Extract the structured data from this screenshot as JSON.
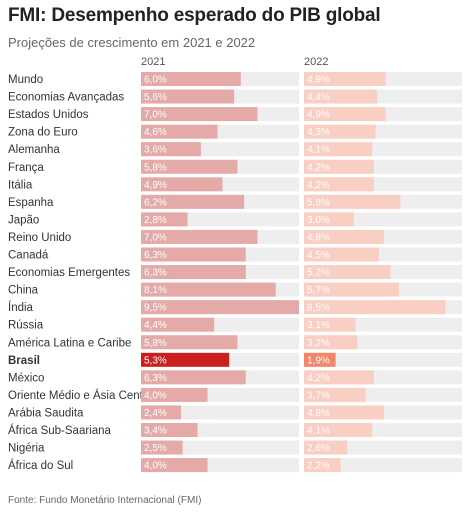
{
  "title": "FMI: Desempenho esperado do PIB global",
  "subtitle": "Projeções de crescimento em 2021 e 2022",
  "source": "Fonte: Fundo Monetário Internacional (FMI)",
  "colors": {
    "bar_2021": "#e3aaa8",
    "bar_2022": "#f8cfc2",
    "highlight_2021": "#c8201d",
    "highlight_2022": "#f2866a",
    "track": "#eeeeee"
  },
  "chart_data": {
    "type": "bar",
    "orientation": "horizontal",
    "unit": "%",
    "highlight": "Brasil",
    "categories": [
      "Mundo",
      "Economias Avançadas",
      "Estados Unidos",
      "Zona do Euro",
      "Alemanha",
      "França",
      "Itália",
      "Espanha",
      "Japão",
      "Reino Unido",
      "Canadá",
      "Economias Emergentes",
      "China",
      "Índia",
      "Rússia",
      "América Latina e Caribe",
      "Brasil",
      "México",
      "Oriente Médio e Ásia Central",
      "Arábia Saudita",
      "África Sub-Saariana",
      "Nigéria",
      "África do Sul"
    ],
    "series": [
      {
        "name": "2021",
        "values": [
          6.0,
          5.6,
          7.0,
          4.6,
          3.6,
          5.8,
          4.9,
          6.2,
          2.8,
          7.0,
          6.3,
          6.3,
          8.1,
          9.5,
          4.4,
          5.8,
          5.3,
          6.3,
          4.0,
          2.4,
          3.4,
          2.5,
          4.0
        ],
        "labels": [
          "6,0%",
          "5,6%",
          "7,0%",
          "4,6%",
          "3,6%",
          "5,8%",
          "4,9%",
          "6,2%",
          "2,8%",
          "7,0%",
          "6,3%",
          "6,3%",
          "8,1%",
          "9,5%",
          "4,4%",
          "5,8%",
          "5,3%",
          "6,3%",
          "4,0%",
          "2,4%",
          "3,4%",
          "2,5%",
          "4,0%"
        ]
      },
      {
        "name": "2022",
        "values": [
          4.9,
          4.4,
          4.9,
          4.3,
          4.1,
          4.2,
          4.2,
          5.8,
          3.0,
          4.8,
          4.5,
          5.2,
          5.7,
          8.5,
          3.1,
          3.2,
          1.9,
          4.2,
          3.7,
          4.8,
          4.1,
          2.6,
          2.2
        ],
        "labels": [
          "4,9%",
          "4,4%",
          "4,9%",
          "4,3%",
          "4,1%",
          "4,2%",
          "4,2%",
          "5,8%",
          "3,0%",
          "4,8%",
          "4,5%",
          "5,2%",
          "5,7%",
          "8,5%",
          "3,1%",
          "3,2%",
          "1,9%",
          "4,2%",
          "3,7%",
          "4,8%",
          "4,1%",
          "2,6%",
          "2,2%"
        ]
      }
    ],
    "xlim": [
      0,
      9.5
    ]
  }
}
